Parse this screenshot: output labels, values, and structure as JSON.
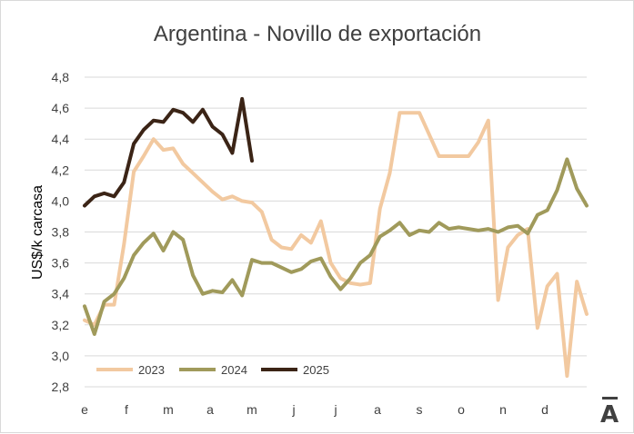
{
  "chart_data": {
    "type": "line",
    "title": "Argentina - Novillo de exportación",
    "ylabel": "US$/k carcasa",
    "xlabel": "",
    "ylim": [
      2.8,
      4.8
    ],
    "yticks": [
      "2,8",
      "3,0",
      "3,2",
      "3,4",
      "3,6",
      "3,8",
      "4,0",
      "4,2",
      "4,4",
      "4,6",
      "4,8"
    ],
    "month_labels": [
      "e",
      "f",
      "m",
      "a",
      "m",
      "j",
      "j",
      "a",
      "s",
      "o",
      "n",
      "d"
    ],
    "grid": true,
    "legend_position": "bottom-left",
    "series": [
      {
        "name": "2023",
        "color": "#f2c9a0",
        "values": [
          3.23,
          3.2,
          3.33,
          3.33,
          3.72,
          4.19,
          4.29,
          4.4,
          4.33,
          4.34,
          4.24,
          4.18,
          4.12,
          4.06,
          4.01,
          4.03,
          4.0,
          3.99,
          3.93,
          3.75,
          3.7,
          3.69,
          3.78,
          3.73,
          3.87,
          3.6,
          3.5,
          3.47,
          3.46,
          3.47,
          3.95,
          4.18,
          4.57,
          4.57,
          4.57,
          4.43,
          4.29,
          4.29,
          4.29,
          4.29,
          4.38,
          4.52,
          3.36,
          3.7,
          3.78,
          3.82,
          3.18,
          3.45,
          3.53,
          2.87,
          3.48,
          3.27
        ]
      },
      {
        "name": "2024",
        "color": "#a09a5b",
        "values": [
          3.32,
          3.14,
          3.35,
          3.4,
          3.5,
          3.65,
          3.73,
          3.79,
          3.68,
          3.8,
          3.75,
          3.52,
          3.4,
          3.42,
          3.41,
          3.49,
          3.39,
          3.62,
          3.6,
          3.6,
          3.57,
          3.54,
          3.56,
          3.61,
          3.63,
          3.51,
          3.43,
          3.5,
          3.6,
          3.65,
          3.77,
          3.81,
          3.86,
          3.78,
          3.81,
          3.8,
          3.86,
          3.82,
          3.83,
          3.82,
          3.81,
          3.82,
          3.8,
          3.83,
          3.84,
          3.79,
          3.91,
          3.94,
          4.07,
          4.27,
          4.08,
          3.97
        ]
      },
      {
        "name": "2025",
        "color": "#3b2416",
        "values": [
          3.97,
          4.03,
          4.05,
          4.03,
          4.12,
          4.37,
          4.46,
          4.52,
          4.51,
          4.59,
          4.57,
          4.51,
          4.59,
          4.48,
          4.43,
          4.31,
          4.66,
          4.26
        ]
      }
    ]
  }
}
